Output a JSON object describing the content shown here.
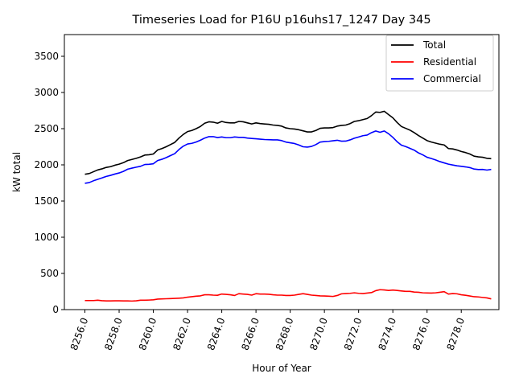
{
  "chart_data": {
    "type": "line",
    "title": "Timeseries Load for P16U p16uhs17_1247  Day 345",
    "xlabel": "Hour of Year",
    "ylabel": "kW total",
    "xlim": [
      8254.8,
      8280.2
    ],
    "ylim": [
      0,
      3800
    ],
    "xticks": [
      8256,
      8258,
      8260,
      8262,
      8264,
      8266,
      8268,
      8270,
      8272,
      8274,
      8276,
      8278
    ],
    "xtick_labels": [
      "8256.0",
      "8258.0",
      "8260.0",
      "8262.0",
      "8264.0",
      "8266.0",
      "8268.0",
      "8270.0",
      "8272.0",
      "8274.0",
      "8276.0",
      "8278.0"
    ],
    "yticks": [
      0,
      500,
      1000,
      1500,
      2000,
      2500,
      3000,
      3500
    ],
    "ytick_labels": [
      "0",
      "500",
      "1000",
      "1500",
      "2000",
      "2500",
      "3000",
      "3500"
    ],
    "legend_position": "upper-right",
    "grid": false,
    "x": [
      8256.0,
      8256.25,
      8256.5,
      8256.75,
      8257.0,
      8257.25,
      8257.5,
      8257.75,
      8258.0,
      8258.25,
      8258.5,
      8258.75,
      8259.0,
      8259.25,
      8259.5,
      8259.75,
      8260.0,
      8260.25,
      8260.5,
      8260.75,
      8261.0,
      8261.25,
      8261.5,
      8261.75,
      8262.0,
      8262.25,
      8262.5,
      8262.75,
      8263.0,
      8263.25,
      8263.5,
      8263.75,
      8264.0,
      8264.25,
      8264.5,
      8264.75,
      8265.0,
      8265.25,
      8265.5,
      8265.75,
      8266.0,
      8266.25,
      8266.5,
      8266.75,
      8267.0,
      8267.25,
      8267.5,
      8267.75,
      8268.0,
      8268.25,
      8268.5,
      8268.75,
      8269.0,
      8269.25,
      8269.5,
      8269.75,
      8270.0,
      8270.25,
      8270.5,
      8270.75,
      8271.0,
      8271.25,
      8271.5,
      8271.75,
      8272.0,
      8272.25,
      8272.5,
      8272.75,
      8273.0,
      8273.25,
      8273.5,
      8273.75,
      8274.0,
      8274.25,
      8274.5,
      8274.75,
      8275.0,
      8275.25,
      8275.5,
      8275.75,
      8276.0,
      8276.25,
      8276.5,
      8276.75,
      8277.0,
      8277.25,
      8277.5,
      8277.75,
      8278.0,
      8278.25,
      8278.5,
      8278.75,
      8279.0,
      8279.25,
      8279.5,
      8279.75
    ],
    "series": [
      {
        "name": "Total",
        "color": "#000000",
        "values": [
          1870,
          1880,
          1905,
          1930,
          1945,
          1965,
          1975,
          1995,
          2010,
          2030,
          2060,
          2075,
          2090,
          2110,
          2135,
          2140,
          2150,
          2205,
          2225,
          2250,
          2280,
          2310,
          2370,
          2420,
          2460,
          2475,
          2500,
          2530,
          2575,
          2595,
          2590,
          2575,
          2600,
          2585,
          2580,
          2580,
          2600,
          2595,
          2580,
          2565,
          2580,
          2570,
          2565,
          2560,
          2550,
          2545,
          2535,
          2510,
          2500,
          2495,
          2485,
          2470,
          2455,
          2455,
          2475,
          2505,
          2510,
          2510,
          2515,
          2535,
          2545,
          2550,
          2570,
          2600,
          2610,
          2625,
          2640,
          2680,
          2730,
          2725,
          2740,
          2695,
          2650,
          2585,
          2530,
          2505,
          2480,
          2445,
          2405,
          2370,
          2335,
          2315,
          2300,
          2285,
          2275,
          2225,
          2220,
          2205,
          2185,
          2170,
          2150,
          2120,
          2110,
          2105,
          2090,
          2085
        ]
      },
      {
        "name": "Residential",
        "color": "#ff0000",
        "values": [
          125,
          125,
          125,
          130,
          123,
          120,
          120,
          122,
          122,
          120,
          120,
          118,
          122,
          130,
          130,
          132,
          135,
          145,
          148,
          150,
          152,
          155,
          158,
          162,
          172,
          178,
          185,
          190,
          205,
          205,
          200,
          198,
          215,
          210,
          205,
          195,
          220,
          215,
          210,
          200,
          220,
          215,
          215,
          212,
          205,
          200,
          200,
          195,
          195,
          200,
          210,
          220,
          210,
          200,
          195,
          190,
          188,
          185,
          182,
          195,
          218,
          222,
          225,
          232,
          225,
          222,
          228,
          235,
          262,
          275,
          272,
          265,
          270,
          265,
          258,
          252,
          252,
          242,
          240,
          232,
          230,
          228,
          232,
          240,
          248,
          215,
          222,
          218,
          205,
          198,
          188,
          178,
          175,
          168,
          162,
          148
        ]
      },
      {
        "name": "Commercial",
        "color": "#0000ff",
        "values": [
          1745,
          1755,
          1780,
          1800,
          1820,
          1840,
          1855,
          1873,
          1888,
          1910,
          1940,
          1955,
          1968,
          1980,
          2005,
          2008,
          2015,
          2060,
          2077,
          2100,
          2128,
          2155,
          2212,
          2258,
          2288,
          2297,
          2315,
          2340,
          2370,
          2390,
          2390,
          2377,
          2385,
          2375,
          2375,
          2385,
          2380,
          2380,
          2370,
          2365,
          2360,
          2355,
          2350,
          2348,
          2345,
          2345,
          2335,
          2315,
          2305,
          2295,
          2275,
          2250,
          2245,
          2255,
          2280,
          2315,
          2322,
          2325,
          2333,
          2340,
          2327,
          2328,
          2345,
          2368,
          2385,
          2403,
          2412,
          2445,
          2468,
          2450,
          2468,
          2430,
          2380,
          2320,
          2272,
          2253,
          2228,
          2203,
          2165,
          2138,
          2105,
          2087,
          2068,
          2045,
          2027,
          2010,
          1998,
          1987,
          1980,
          1972,
          1962,
          1942,
          1935,
          1937,
          1928,
          1937
        ]
      }
    ]
  }
}
